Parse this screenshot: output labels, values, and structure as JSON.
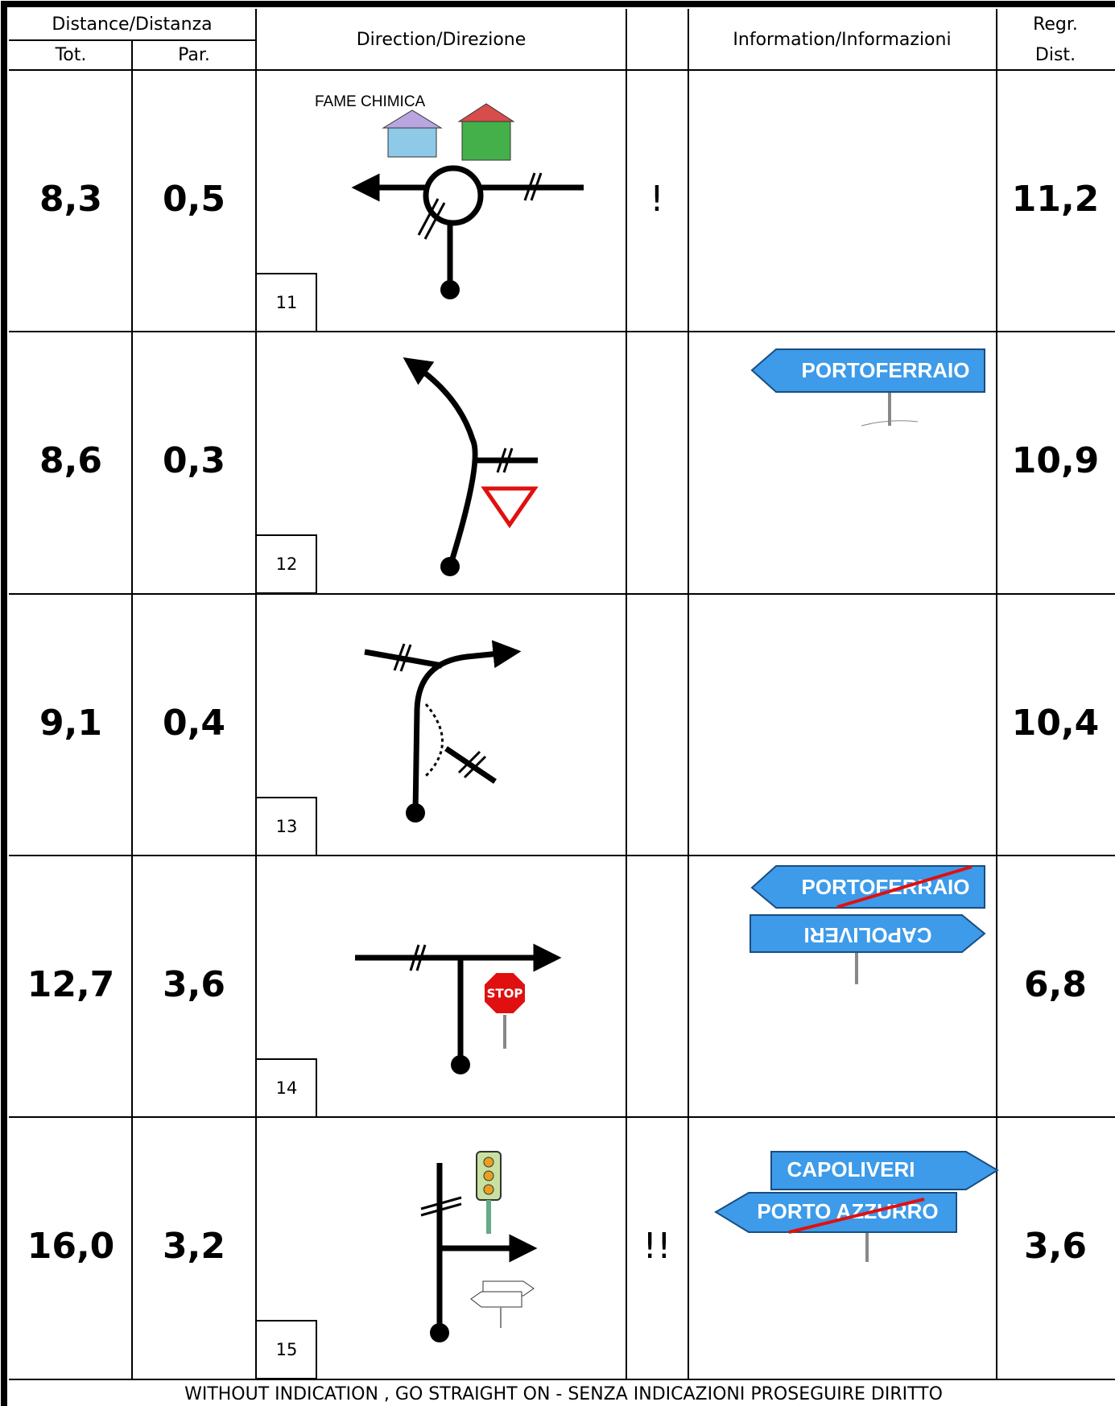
{
  "header": {
    "distance": "Distance/Distanza",
    "tot": "Tot.",
    "par": "Par.",
    "direction": "Direction/Direzione",
    "information": "Information/Informazioni",
    "regr": "Regr.",
    "dist": "Dist."
  },
  "rows": [
    {
      "tot": "8,3",
      "par": "0,5",
      "number": "11",
      "alert": "!",
      "regr": "11,2",
      "landmark": "FAME CHIMICA"
    },
    {
      "tot": "8,6",
      "par": "0,3",
      "number": "12",
      "regr": "10,9",
      "signs": [
        "PORTOFERRAIO"
      ]
    },
    {
      "tot": "9,1",
      "par": "0,4",
      "number": "13",
      "regr": "10,4"
    },
    {
      "tot": "12,7",
      "par": "3,6",
      "number": "14",
      "regr": "6,8",
      "signs": [
        "PORTOFERRAIO",
        "CAPOLIVERI"
      ]
    },
    {
      "tot": "16,0",
      "par": "3,2",
      "number": "15",
      "alert": "!!",
      "regr": "3,6",
      "signs": [
        "CAPOLIVERI",
        "PORTO AZZURRO"
      ]
    }
  ],
  "footer": "WITHOUT INDICATION , GO STRAIGHT ON - SENZA INDICAZIONI PROSEGUIRE DIRITTO"
}
